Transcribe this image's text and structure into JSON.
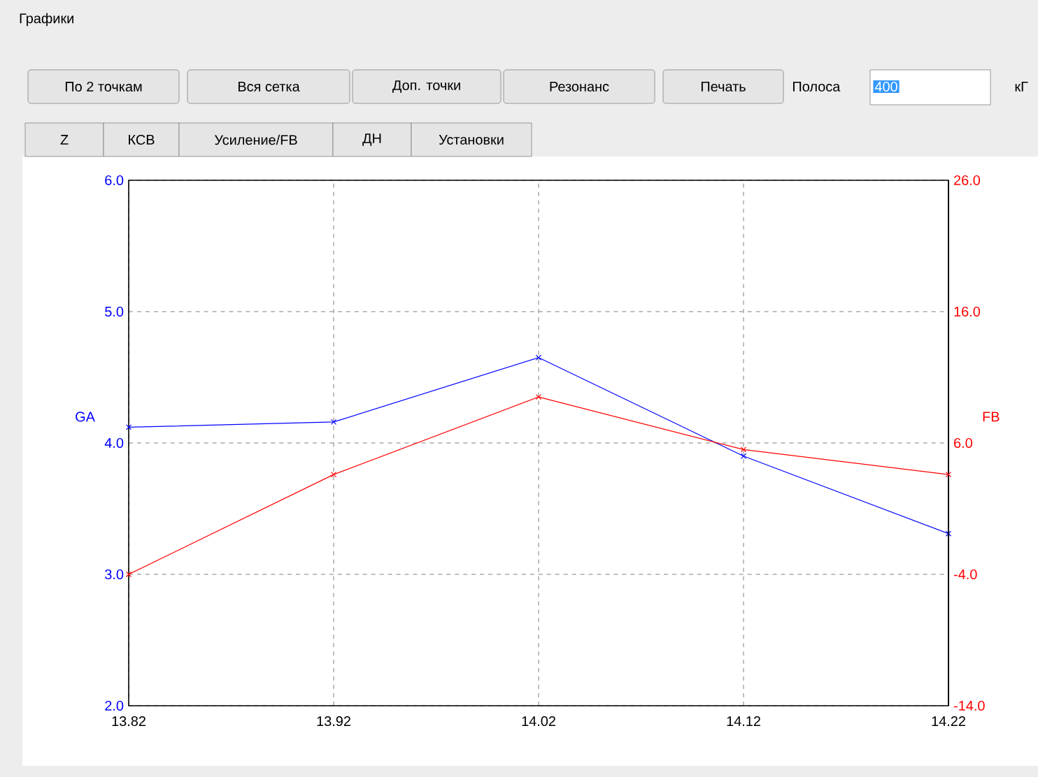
{
  "chart_data": {
    "type": "line",
    "title": "Графики",
    "annotations": [
      "По 2 точкам",
      "Вся сетка",
      "Доп. точки",
      "Резонанс",
      "Печать",
      "Полоса",
      "400",
      "кГ",
      "Z",
      "КСВ",
      "Усиление/FB",
      "ДН",
      "Установки"
    ],
    "x": [
      13.82,
      13.92,
      14.02,
      14.12,
      14.22
    ],
    "xlim": [
      13.82,
      14.22
    ],
    "xticks": [
      13.82,
      13.92,
      14.02,
      14.12,
      14.22
    ],
    "ylim": [
      2,
      6
    ],
    "yticks": [
      {
        "value": 2,
        "label": "2.0"
      },
      {
        "value": 3,
        "label": "3.0"
      },
      {
        "value": 4,
        "label": "4.0"
      },
      {
        "value": 5,
        "label": "5.0"
      },
      {
        "value": 6,
        "label": "6.0"
      }
    ],
    "y2lim": [
      -14,
      26
    ],
    "y2ticks": [
      {
        "value": -14,
        "label": "-14.0"
      },
      {
        "value": -4,
        "label": "-4.0"
      },
      {
        "value": 6,
        "label": "6.0"
      },
      {
        "value": 16,
        "label": "16.0"
      },
      {
        "value": 26,
        "label": "26.0"
      }
    ],
    "ylabel": "GA",
    "y2label": "FB",
    "series": [
      {
        "color": "#0000ff",
        "values": [
          4.12,
          4.16,
          4.65,
          3.9,
          3.31
        ]
      },
      {
        "color": "#ff0000",
        "axis": "y2",
        "values": [
          -4.0,
          3.6,
          9.5,
          5.5,
          3.6
        ]
      }
    ],
    "grid": true,
    "marker": "cross",
    "line_style": "solid"
  }
}
